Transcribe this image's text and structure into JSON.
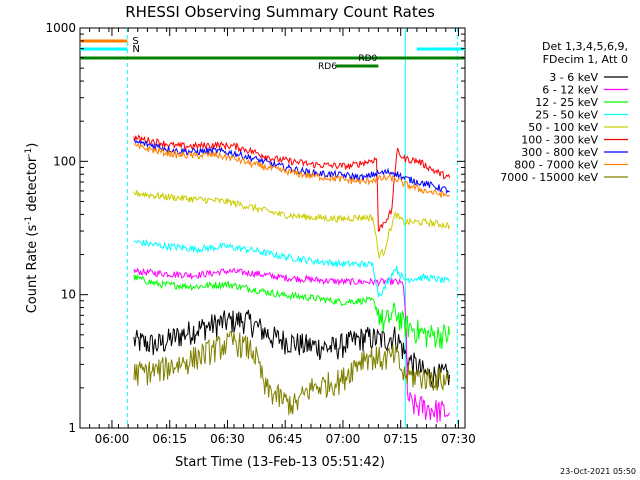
{
  "chart_data": {
    "type": "line",
    "title": "RHESSI Observing Summary Count Rates",
    "xlabel": "Start Time (13-Feb-13 05:51:42)",
    "ylabel_main": "Count Rate (s",
    "ylabel_sup": "-1",
    "ylabel_rest": " detector",
    "ylabel_sup2": "-1",
    "ylabel_end": ")",
    "y_scale": "log",
    "ylim": [
      1,
      1000
    ],
    "xlim_minutes": [
      0,
      100
    ],
    "x_ticks": [
      {
        "m": 8.3,
        "label": "06:00"
      },
      {
        "m": 23.3,
        "label": "06:15"
      },
      {
        "m": 38.3,
        "label": "06:30"
      },
      {
        "m": 53.3,
        "label": "06:45"
      },
      {
        "m": 68.3,
        "label": "07:00"
      },
      {
        "m": 83.3,
        "label": "07:15"
      },
      {
        "m": 98.3,
        "label": "07:30"
      }
    ],
    "y_ticks": [
      {
        "v": 1,
        "label": "1"
      },
      {
        "v": 10,
        "label": "10"
      },
      {
        "v": 100,
        "label": "100"
      },
      {
        "v": 1000,
        "label": "1000"
      }
    ],
    "legend_title": [
      "Det 1,3,4,5,6,9,",
      "FDecim 1, Att 0"
    ],
    "series": [
      {
        "name": "3 - 6 keV",
        "color": "#000000",
        "points": [
          [
            14,
            4.5
          ],
          [
            20,
            4.2
          ],
          [
            30,
            5.5
          ],
          [
            38,
            6.3
          ],
          [
            43,
            6.5
          ],
          [
            50,
            4.8
          ],
          [
            58,
            4.2
          ],
          [
            66,
            4.0
          ],
          [
            70,
            4.4
          ],
          [
            74,
            4.8
          ],
          [
            79,
            4.6
          ],
          [
            82,
            4.9
          ],
          [
            85,
            3.3
          ],
          [
            90,
            2.5
          ],
          [
            96,
            2.5
          ]
        ]
      },
      {
        "name": "6 - 12 keV",
        "color": "#ff00ff",
        "points": [
          [
            14,
            15
          ],
          [
            20,
            14.5
          ],
          [
            30,
            14
          ],
          [
            38,
            15
          ],
          [
            45,
            14.5
          ],
          [
            52,
            13.5
          ],
          [
            60,
            13
          ],
          [
            68,
            12.5
          ],
          [
            73,
            12.5
          ],
          [
            76,
            12.5
          ],
          [
            79,
            12.5
          ],
          [
            82,
            12.5
          ],
          [
            84,
            12
          ],
          [
            85,
            1.8
          ],
          [
            86,
            1.5
          ],
          [
            96,
            1.3
          ]
        ]
      },
      {
        "name": "12 - 25 keV",
        "color": "#00ff00",
        "points": [
          [
            14,
            13.5
          ],
          [
            20,
            12
          ],
          [
            30,
            11.5
          ],
          [
            38,
            12
          ],
          [
            45,
            11
          ],
          [
            52,
            10
          ],
          [
            60,
            9.5
          ],
          [
            68,
            8.8
          ],
          [
            72,
            9
          ],
          [
            76,
            9
          ],
          [
            79,
            6
          ],
          [
            82,
            7.5
          ],
          [
            84,
            6
          ],
          [
            90,
            5
          ],
          [
            96,
            5
          ]
        ]
      },
      {
        "name": "25 - 50 keV",
        "color": "#00ffff",
        "points": [
          [
            14,
            25
          ],
          [
            20,
            23.5
          ],
          [
            30,
            22
          ],
          [
            38,
            23
          ],
          [
            45,
            21.5
          ],
          [
            52,
            19.5
          ],
          [
            60,
            18
          ],
          [
            68,
            17
          ],
          [
            72,
            17
          ],
          [
            76,
            16.8
          ],
          [
            77.5,
            10
          ],
          [
            79,
            11
          ],
          [
            82,
            16
          ],
          [
            84,
            13
          ],
          [
            90,
            13.5
          ],
          [
            96,
            12.5
          ]
        ]
      },
      {
        "name": "50 - 100 keV",
        "color": "#cccc00",
        "points": [
          [
            14,
            58
          ],
          [
            20,
            55
          ],
          [
            30,
            52
          ],
          [
            38,
            50
          ],
          [
            45,
            45
          ],
          [
            52,
            40
          ],
          [
            60,
            38
          ],
          [
            68,
            37
          ],
          [
            72,
            38
          ],
          [
            76,
            38
          ],
          [
            77.5,
            20
          ],
          [
            79,
            21
          ],
          [
            82,
            40
          ],
          [
            84,
            35
          ],
          [
            90,
            35
          ],
          [
            96,
            33
          ]
        ]
      },
      {
        "name": "100 - 300 keV",
        "color": "#ff0000",
        "points": [
          [
            14,
            150
          ],
          [
            20,
            140
          ],
          [
            25,
            130
          ],
          [
            30,
            130
          ],
          [
            35,
            133
          ],
          [
            40,
            130
          ],
          [
            45,
            118
          ],
          [
            50,
            105
          ],
          [
            55,
            100
          ],
          [
            60,
            95
          ],
          [
            65,
            93
          ],
          [
            70,
            92
          ],
          [
            75,
            100
          ],
          [
            77,
            104
          ],
          [
            77.5,
            30
          ],
          [
            79,
            35
          ],
          [
            81,
            42
          ],
          [
            82.5,
            120
          ],
          [
            84,
            105
          ],
          [
            88,
            100
          ],
          [
            92,
            85
          ],
          [
            96,
            75
          ]
        ]
      },
      {
        "name": "300 - 800 keV",
        "color": "#0000ff",
        "points": [
          [
            14,
            140
          ],
          [
            20,
            130
          ],
          [
            25,
            120
          ],
          [
            30,
            118
          ],
          [
            35,
            120
          ],
          [
            40,
            115
          ],
          [
            45,
            105
          ],
          [
            50,
            95
          ],
          [
            55,
            88
          ],
          [
            60,
            82
          ],
          [
            65,
            80
          ],
          [
            70,
            78
          ],
          [
            74,
            75
          ],
          [
            76,
            80
          ],
          [
            80,
            83
          ],
          [
            82,
            82
          ],
          [
            84,
            75
          ],
          [
            88,
            70
          ],
          [
            92,
            65
          ],
          [
            96,
            60
          ]
        ]
      },
      {
        "name": "800 - 7000 keV",
        "color": "#ff8000",
        "points": [
          [
            14,
            130
          ],
          [
            20,
            120
          ],
          [
            25,
            112
          ],
          [
            30,
            110
          ],
          [
            35,
            112
          ],
          [
            40,
            105
          ],
          [
            45,
            95
          ],
          [
            50,
            88
          ],
          [
            55,
            82
          ],
          [
            60,
            78
          ],
          [
            65,
            75
          ],
          [
            70,
            72
          ],
          [
            74,
            70
          ],
          [
            76,
            73
          ],
          [
            80,
            75
          ],
          [
            82,
            74
          ],
          [
            84,
            68
          ],
          [
            88,
            62
          ],
          [
            92,
            58
          ],
          [
            96,
            55
          ]
        ]
      },
      {
        "name": "7000 - 15000 keV",
        "color": "#808000",
        "points": [
          [
            14,
            2.6
          ],
          [
            20,
            2.7
          ],
          [
            28,
            3.2
          ],
          [
            32,
            3.6
          ],
          [
            40,
            4.5
          ],
          [
            45,
            3.8
          ],
          [
            48,
            2.0
          ],
          [
            53,
            1.6
          ],
          [
            56,
            1.5
          ],
          [
            60,
            2.0
          ],
          [
            68,
            2.3
          ],
          [
            74,
            3.5
          ],
          [
            79,
            3.3
          ],
          [
            82,
            3.5
          ],
          [
            84,
            2.5
          ],
          [
            90,
            2.4
          ],
          [
            96,
            2.3
          ]
        ]
      }
    ],
    "state_bars": {
      "S": {
        "label": "S",
        "color": "#ff8000",
        "from_m": 0,
        "to_m": 12.3
      },
      "N": {
        "label": "N",
        "color": "#00ffff",
        "from_m": 0,
        "to_m": 12.3,
        "from2_m": 87.5,
        "to2_m": 100
      },
      "RD0": {
        "label": "RD0",
        "color": "#008000",
        "from_m": 0,
        "to_m": 100
      },
      "RD6": {
        "label": "RD6",
        "color": "#008000",
        "from_m": 66.5,
        "to_m": 77.5
      }
    },
    "vlines_m": [
      12.3,
      84.5,
      98.0
    ],
    "footer_date": "23-Oct-2021 05:50"
  }
}
